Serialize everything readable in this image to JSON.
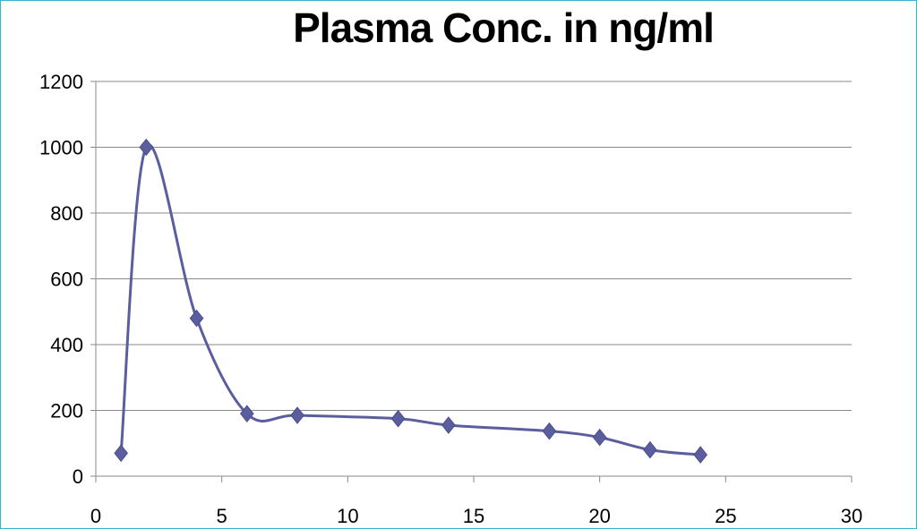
{
  "chart_data": {
    "type": "line",
    "title": "Plasma Conc. in ng/ml",
    "xlabel": "",
    "ylabel": "",
    "xlim": [
      0,
      30
    ],
    "ylim": [
      0,
      1200
    ],
    "x_ticks": [
      0,
      5,
      10,
      15,
      20,
      25,
      30
    ],
    "y_ticks": [
      0,
      200,
      400,
      600,
      800,
      1000,
      1200
    ],
    "grid": "horizontal",
    "legend": "none",
    "smooth": true,
    "marker": "diamond",
    "colors": {
      "series": "#5b5e9e",
      "grid": "#8a8a8a",
      "axis": "#8a8a8a",
      "border": "#36b6c8"
    },
    "series": [
      {
        "x": [
          1,
          2,
          4,
          6,
          8,
          12,
          14,
          18,
          20,
          22,
          24
        ],
        "y": [
          70,
          1000,
          480,
          190,
          185,
          175,
          155,
          137,
          118,
          80,
          65
        ]
      }
    ]
  }
}
